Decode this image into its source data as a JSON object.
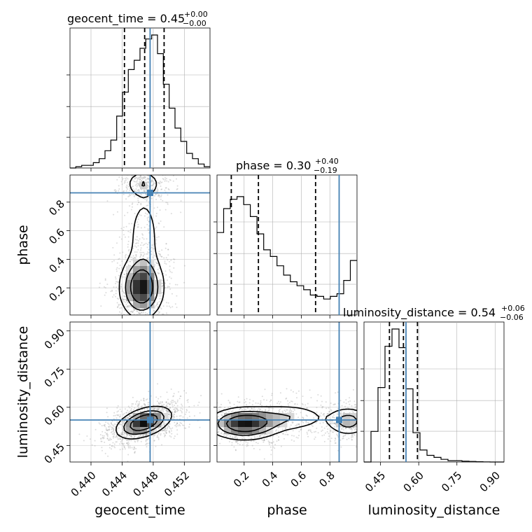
{
  "chart_data": {
    "type": "corner",
    "parameters": [
      "geocent_time",
      "phase",
      "luminosity_distance"
    ],
    "truths": [
      0.4476,
      0.865,
      0.55
    ],
    "truth_color": "#4682b4",
    "titles": {
      "geocent_time": {
        "name": "geocent_time",
        "value": "0.45",
        "plus": "+0.00",
        "minus": "−0.00"
      },
      "phase": {
        "name": "phase",
        "value": "0.30",
        "plus": "+0.40",
        "minus": "−0.19"
      },
      "luminosity_distance": {
        "name": "luminosity_distance",
        "value": "0.54",
        "plus": "+0.06",
        "minus": "−0.06"
      }
    },
    "axes": {
      "geocent_time": {
        "label": "geocent_time",
        "range": [
          0.4373,
          0.4553
        ],
        "ticks": [
          0.44,
          0.444,
          0.448,
          0.452
        ],
        "tick_labels": [
          "0.440",
          "0.444",
          "0.448",
          "0.452"
        ]
      },
      "phase": {
        "label": "phase",
        "range": [
          0.01,
          0.99
        ],
        "ticks": [
          0.2,
          0.4,
          0.6,
          0.8
        ],
        "tick_labels": [
          "0.2",
          "0.4",
          "0.6",
          "0.8"
        ]
      },
      "luminosity_distance": {
        "label": "luminosity_distance",
        "range": [
          0.385,
          0.935
        ],
        "ticks": [
          0.45,
          0.6,
          0.75,
          0.9
        ],
        "tick_labels": [
          "0.45",
          "0.60",
          "0.75",
          "0.90"
        ]
      }
    },
    "histograms": {
      "geocent_time": {
        "bins": [
          0.4373,
          0.4553
        ],
        "counts": [
          0.0,
          0.01,
          0.02,
          0.02,
          0.04,
          0.07,
          0.13,
          0.21,
          0.39,
          0.57,
          0.74,
          0.81,
          0.9,
          0.97,
          1.0,
          0.86,
          0.63,
          0.45,
          0.3,
          0.2,
          0.11,
          0.07,
          0.03,
          0.01
        ],
        "quantiles": [
          0.4443,
          0.4469,
          0.4494
        ]
      },
      "phase": {
        "bins": [
          0.01,
          0.99
        ],
        "counts": [
          0.62,
          0.8,
          0.87,
          0.89,
          0.83,
          0.74,
          0.61,
          0.49,
          0.44,
          0.37,
          0.3,
          0.25,
          0.22,
          0.19,
          0.15,
          0.14,
          0.12,
          0.14,
          0.16,
          0.26,
          0.41
        ],
        "quantiles": [
          0.11,
          0.3,
          0.7
        ]
      },
      "luminosity_distance": {
        "bins": [
          0.385,
          0.935
        ],
        "counts": [
          0.0,
          0.23,
          0.56,
          0.87,
          1.0,
          0.86,
          0.55,
          0.22,
          0.09,
          0.05,
          0.035,
          0.02,
          0.01,
          0.01,
          0.006,
          0.004,
          0.002,
          0.001,
          0.0,
          0.0
        ],
        "quantiles": [
          0.485,
          0.54,
          0.595
        ]
      }
    },
    "density_2d": {
      "phase_vs_geocent_time": {
        "levels": [
          0.39,
          0.86,
          1.39,
          1.97
        ],
        "blobs": [
          {
            "cx": 0.4465,
            "cy": 0.2,
            "sx": 0.00145,
            "sy": 0.11,
            "w": 1.0
          },
          {
            "cx": 0.4467,
            "cy": 0.93,
            "sx": 0.0012,
            "sy": 0.05,
            "w": 0.35
          },
          {
            "cx": 0.4468,
            "cy": 0.55,
            "sx": 0.0013,
            "sy": 0.2,
            "w": 0.25
          }
        ]
      },
      "luminosity_distance_vs_geocent_time": {
        "levels": [
          0.39,
          0.86,
          1.39,
          1.97
        ],
        "blobs": [
          {
            "cx": 0.4468,
            "cy": 0.54,
            "sx": 0.0018,
            "sy": 0.032,
            "w": 1.0,
            "rho": 0.45
          }
        ]
      },
      "luminosity_distance_vs_phase": {
        "levels": [
          0.39,
          0.86,
          1.39,
          1.97
        ],
        "blobs": [
          {
            "cx": 0.2,
            "cy": 0.535,
            "sx": 0.13,
            "sy": 0.032,
            "w": 1.0
          },
          {
            "cx": 0.5,
            "cy": 0.56,
            "sx": 0.16,
            "sy": 0.03,
            "w": 0.35
          },
          {
            "cx": 0.93,
            "cy": 0.545,
            "sx": 0.08,
            "sy": 0.03,
            "w": 0.5
          }
        ]
      }
    },
    "grid": true
  }
}
